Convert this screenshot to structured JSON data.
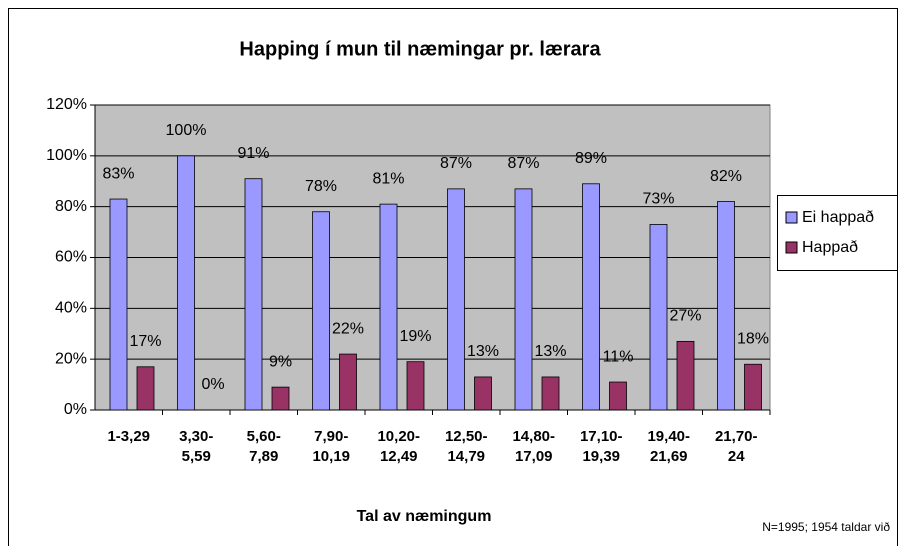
{
  "chart_data": {
    "type": "bar",
    "title": "Happing í mun til næmingar pr. lærara",
    "x_label": "Tal av næmingum",
    "note": "N=1995; 1954 taldar við",
    "categories": [
      "1-3,29",
      "3,30-5,59",
      "5,60-7,89",
      "7,90-10,19",
      "10,20-12,49",
      "12,50-14,79",
      "14,80-17,09",
      "17,10-19,39",
      "19,40-21,69",
      "21,70-24"
    ],
    "series": [
      {
        "name": "Ei happað",
        "color": "#9999ff",
        "values": [
          83,
          100,
          91,
          78,
          81,
          87,
          87,
          89,
          73,
          82
        ],
        "value_labels": [
          "83%",
          "100%",
          "91%",
          "78%",
          "81%",
          "87%",
          "87%",
          "89%",
          "73%",
          "82%"
        ]
      },
      {
        "name": "Happað",
        "color": "#993366",
        "values": [
          17,
          0,
          9,
          22,
          19,
          13,
          13,
          11,
          27,
          18
        ],
        "value_labels": [
          "17%",
          "0%",
          "9%",
          "22%",
          "19%",
          "13%",
          "13%",
          "11%",
          "27%",
          "18%"
        ]
      }
    ],
    "ylim": [
      0,
      120
    ],
    "yticks": [
      {
        "value": 0,
        "label": "0%"
      },
      {
        "value": 20,
        "label": "20%"
      },
      {
        "value": 40,
        "label": "40%"
      },
      {
        "value": 60,
        "label": "60%"
      },
      {
        "value": 80,
        "label": "80%"
      },
      {
        "value": 100,
        "label": "100%"
      },
      {
        "value": 120,
        "label": "120%"
      }
    ],
    "grid": true,
    "legend": "right",
    "plot_background": "#c0c0c0"
  }
}
